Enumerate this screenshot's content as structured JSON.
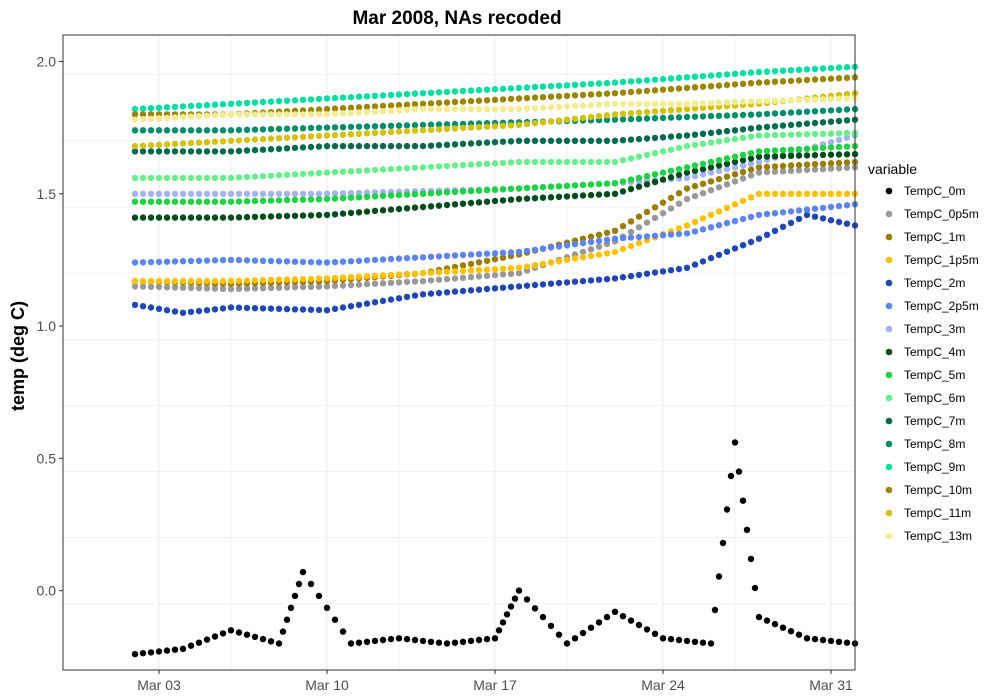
{
  "chart_data": {
    "type": "scatter",
    "title": "Mar 2008, NAs recoded",
    "xlabel": "",
    "ylabel": "temp (deg C)",
    "x_domain": [
      "2008-02-28",
      "2008-04-01"
    ],
    "ylim": [
      -0.3,
      2.1
    ],
    "x_ticks": [
      {
        "date": "2008-03-03",
        "label": "Mar 03"
      },
      {
        "date": "2008-03-10",
        "label": "Mar 10"
      },
      {
        "date": "2008-03-17",
        "label": "Mar 17"
      },
      {
        "date": "2008-03-24",
        "label": "Mar 24"
      },
      {
        "date": "2008-03-31",
        "label": "Mar 31"
      }
    ],
    "y_ticks": [
      {
        "value": 0.0,
        "label": "0.0"
      },
      {
        "value": 0.5,
        "label": "0.5"
      },
      {
        "value": 1.0,
        "label": "1.0"
      },
      {
        "value": 1.5,
        "label": "1.5"
      },
      {
        "value": 2.0,
        "label": "2.0"
      }
    ],
    "grid": true,
    "legend": {
      "title": "variable",
      "placement": "right"
    },
    "series": [
      {
        "name": "TempC_0m",
        "color": "#000000",
        "points": [
          [
            "2008-03-02",
            -0.24
          ],
          [
            "2008-03-04",
            -0.22
          ],
          [
            "2008-03-06",
            -0.15
          ],
          [
            "2008-03-08",
            -0.2
          ],
          [
            "2008-03-09",
            0.07
          ],
          [
            "2008-03-11",
            -0.2
          ],
          [
            "2008-03-13",
            -0.18
          ],
          [
            "2008-03-15",
            -0.2
          ],
          [
            "2008-03-17",
            -0.18
          ],
          [
            "2008-03-18",
            0.0
          ],
          [
            "2008-03-20",
            -0.2
          ],
          [
            "2008-03-22",
            -0.08
          ],
          [
            "2008-03-24",
            -0.18
          ],
          [
            "2008-03-26",
            -0.2
          ],
          [
            "2008-03-27",
            0.56
          ],
          [
            "2008-03-28",
            -0.1
          ],
          [
            "2008-03-30",
            -0.18
          ],
          [
            "2008-04-01",
            -0.2
          ]
        ]
      },
      {
        "name": "TempC_0p5m",
        "color": "#999999",
        "points": [
          [
            "2008-03-02",
            1.15
          ],
          [
            "2008-03-06",
            1.14
          ],
          [
            "2008-03-10",
            1.15
          ],
          [
            "2008-03-14",
            1.17
          ],
          [
            "2008-03-18",
            1.2
          ],
          [
            "2008-03-22",
            1.32
          ],
          [
            "2008-03-25",
            1.48
          ],
          [
            "2008-03-28",
            1.58
          ],
          [
            "2008-04-01",
            1.6
          ]
        ]
      },
      {
        "name": "TempC_1m",
        "color": "#9c7d00",
        "points": [
          [
            "2008-03-02",
            1.17
          ],
          [
            "2008-03-06",
            1.16
          ],
          [
            "2008-03-10",
            1.17
          ],
          [
            "2008-03-14",
            1.2
          ],
          [
            "2008-03-18",
            1.27
          ],
          [
            "2008-03-22",
            1.36
          ],
          [
            "2008-03-25",
            1.52
          ],
          [
            "2008-03-28",
            1.6
          ],
          [
            "2008-04-01",
            1.62
          ]
        ]
      },
      {
        "name": "TempC_1p5m",
        "color": "#ffc000",
        "points": [
          [
            "2008-03-02",
            1.17
          ],
          [
            "2008-03-06",
            1.17
          ],
          [
            "2008-03-10",
            1.18
          ],
          [
            "2008-03-14",
            1.2
          ],
          [
            "2008-03-18",
            1.22
          ],
          [
            "2008-03-22",
            1.28
          ],
          [
            "2008-03-25",
            1.38
          ],
          [
            "2008-03-28",
            1.5
          ],
          [
            "2008-04-01",
            1.5
          ]
        ]
      },
      {
        "name": "TempC_2m",
        "color": "#1f47b5",
        "points": [
          [
            "2008-03-02",
            1.08
          ],
          [
            "2008-03-04",
            1.05
          ],
          [
            "2008-03-06",
            1.07
          ],
          [
            "2008-03-10",
            1.06
          ],
          [
            "2008-03-14",
            1.12
          ],
          [
            "2008-03-18",
            1.15
          ],
          [
            "2008-03-22",
            1.18
          ],
          [
            "2008-03-25",
            1.22
          ],
          [
            "2008-03-28",
            1.33
          ],
          [
            "2008-03-30",
            1.42
          ],
          [
            "2008-04-01",
            1.38
          ]
        ]
      },
      {
        "name": "TempC_2p5m",
        "color": "#5c85f0",
        "points": [
          [
            "2008-03-02",
            1.24
          ],
          [
            "2008-03-06",
            1.25
          ],
          [
            "2008-03-10",
            1.24
          ],
          [
            "2008-03-14",
            1.26
          ],
          [
            "2008-03-18",
            1.28
          ],
          [
            "2008-03-22",
            1.33
          ],
          [
            "2008-03-25",
            1.35
          ],
          [
            "2008-03-28",
            1.42
          ],
          [
            "2008-04-01",
            1.46
          ]
        ]
      },
      {
        "name": "TempC_3m",
        "color": "#a3b3f0",
        "points": [
          [
            "2008-03-02",
            1.5
          ],
          [
            "2008-03-06",
            1.5
          ],
          [
            "2008-03-10",
            1.5
          ],
          [
            "2008-03-14",
            1.51
          ],
          [
            "2008-03-18",
            1.52
          ],
          [
            "2008-03-22",
            1.54
          ],
          [
            "2008-03-25",
            1.56
          ],
          [
            "2008-03-28",
            1.62
          ],
          [
            "2008-04-01",
            1.72
          ]
        ]
      },
      {
        "name": "TempC_4m",
        "color": "#004d1a",
        "points": [
          [
            "2008-03-02",
            1.41
          ],
          [
            "2008-03-06",
            1.41
          ],
          [
            "2008-03-10",
            1.42
          ],
          [
            "2008-03-14",
            1.45
          ],
          [
            "2008-03-18",
            1.48
          ],
          [
            "2008-03-22",
            1.5
          ],
          [
            "2008-03-25",
            1.58
          ],
          [
            "2008-03-28",
            1.64
          ],
          [
            "2008-04-01",
            1.65
          ]
        ]
      },
      {
        "name": "TempC_5m",
        "color": "#19d640",
        "points": [
          [
            "2008-03-02",
            1.47
          ],
          [
            "2008-03-06",
            1.47
          ],
          [
            "2008-03-10",
            1.48
          ],
          [
            "2008-03-14",
            1.5
          ],
          [
            "2008-03-18",
            1.52
          ],
          [
            "2008-03-22",
            1.54
          ],
          [
            "2008-03-25",
            1.6
          ],
          [
            "2008-03-28",
            1.66
          ],
          [
            "2008-04-01",
            1.68
          ]
        ]
      },
      {
        "name": "TempC_6m",
        "color": "#66f08c",
        "points": [
          [
            "2008-03-02",
            1.56
          ],
          [
            "2008-03-06",
            1.56
          ],
          [
            "2008-03-10",
            1.58
          ],
          [
            "2008-03-14",
            1.6
          ],
          [
            "2008-03-18",
            1.62
          ],
          [
            "2008-03-22",
            1.62
          ],
          [
            "2008-03-25",
            1.68
          ],
          [
            "2008-03-28",
            1.72
          ],
          [
            "2008-04-01",
            1.73
          ]
        ]
      },
      {
        "name": "TempC_7m",
        "color": "#006b4f",
        "points": [
          [
            "2008-03-02",
            1.66
          ],
          [
            "2008-03-06",
            1.66
          ],
          [
            "2008-03-10",
            1.68
          ],
          [
            "2008-03-14",
            1.68
          ],
          [
            "2008-03-18",
            1.7
          ],
          [
            "2008-03-22",
            1.7
          ],
          [
            "2008-03-25",
            1.72
          ],
          [
            "2008-03-28",
            1.75
          ],
          [
            "2008-04-01",
            1.78
          ]
        ]
      },
      {
        "name": "TempC_8m",
        "color": "#008f6b",
        "points": [
          [
            "2008-03-02",
            1.74
          ],
          [
            "2008-03-06",
            1.74
          ],
          [
            "2008-03-10",
            1.75
          ],
          [
            "2008-03-14",
            1.76
          ],
          [
            "2008-03-18",
            1.77
          ],
          [
            "2008-03-22",
            1.78
          ],
          [
            "2008-03-25",
            1.79
          ],
          [
            "2008-03-28",
            1.8
          ],
          [
            "2008-04-01",
            1.82
          ]
        ]
      },
      {
        "name": "TempC_9m",
        "color": "#00e0a3",
        "points": [
          [
            "2008-03-02",
            1.82
          ],
          [
            "2008-03-06",
            1.84
          ],
          [
            "2008-03-10",
            1.86
          ],
          [
            "2008-03-14",
            1.88
          ],
          [
            "2008-03-18",
            1.9
          ],
          [
            "2008-03-22",
            1.92
          ],
          [
            "2008-03-25",
            1.94
          ],
          [
            "2008-03-28",
            1.96
          ],
          [
            "2008-04-01",
            1.98
          ]
        ]
      },
      {
        "name": "TempC_10m",
        "color": "#9e8500",
        "points": [
          [
            "2008-03-02",
            1.8
          ],
          [
            "2008-03-06",
            1.8
          ],
          [
            "2008-03-10",
            1.82
          ],
          [
            "2008-03-14",
            1.84
          ],
          [
            "2008-03-18",
            1.86
          ],
          [
            "2008-03-22",
            1.88
          ],
          [
            "2008-03-25",
            1.9
          ],
          [
            "2008-03-28",
            1.92
          ],
          [
            "2008-04-01",
            1.94
          ]
        ]
      },
      {
        "name": "TempC_11m",
        "color": "#d4c20f",
        "points": [
          [
            "2008-03-02",
            1.68
          ],
          [
            "2008-03-06",
            1.7
          ],
          [
            "2008-03-10",
            1.72
          ],
          [
            "2008-03-14",
            1.74
          ],
          [
            "2008-03-18",
            1.76
          ],
          [
            "2008-03-22",
            1.8
          ],
          [
            "2008-03-25",
            1.82
          ],
          [
            "2008-03-28",
            1.84
          ],
          [
            "2008-04-01",
            1.88
          ]
        ]
      },
      {
        "name": "TempC_13m",
        "color": "#f5ec8f",
        "points": [
          [
            "2008-03-02",
            1.78
          ],
          [
            "2008-03-06",
            1.8
          ],
          [
            "2008-03-10",
            1.8
          ],
          [
            "2008-03-14",
            1.82
          ],
          [
            "2008-03-18",
            1.82
          ],
          [
            "2008-03-22",
            1.84
          ],
          [
            "2008-03-25",
            1.84
          ],
          [
            "2008-03-28",
            1.85
          ],
          [
            "2008-04-01",
            1.86
          ]
        ]
      }
    ]
  }
}
